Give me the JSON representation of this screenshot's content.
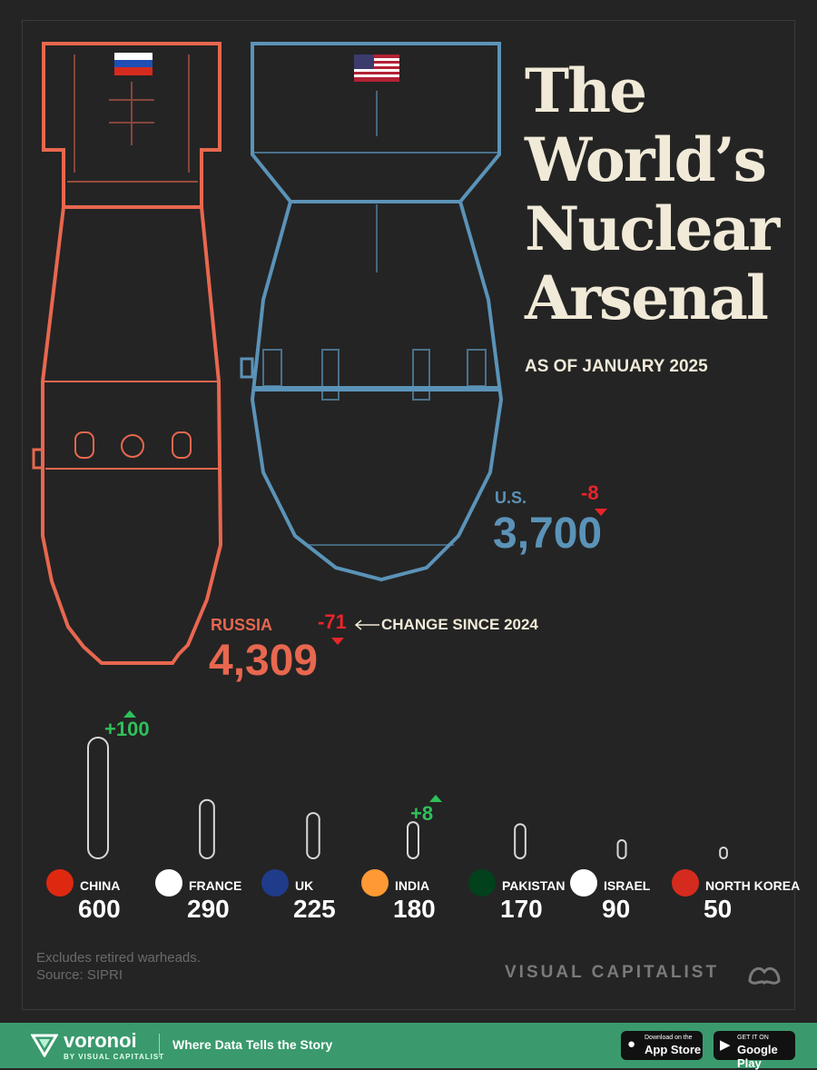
{
  "title_lines": [
    "The",
    "World’s",
    "Nuclear",
    "Arsenal"
  ],
  "subtitle": "AS OF JANUARY 2025",
  "annotation": "CHANGE SINCE 2024",
  "colors": {
    "background": "#242424",
    "russia": "#e8674f",
    "us": "#5b93b8",
    "increase": "#2ec15a",
    "decrease": "#e8252b",
    "text": "#f1ead8"
  },
  "chart_data": {
    "type": "bar",
    "title": "The World’s Nuclear Arsenal",
    "subtitle": "AS OF JANUARY 2025",
    "unit": "warheads",
    "categories": [
      "RUSSIA",
      "U.S.",
      "CHINA",
      "FRANCE",
      "UK",
      "INDIA",
      "PAKISTAN",
      "ISRAEL",
      "NORTH KOREA"
    ],
    "values": [
      4309,
      3700,
      600,
      290,
      225,
      180,
      170,
      90,
      50
    ],
    "value_labels": [
      "4,309",
      "3,700",
      "600",
      "290",
      "225",
      "180",
      "170",
      "90",
      "50"
    ],
    "change_since_2024": [
      {
        "country": "RUSSIA",
        "label": "-71",
        "value": -71
      },
      {
        "country": "U.S.",
        "label": "-8",
        "value": -8
      },
      {
        "country": "CHINA",
        "label": "+100",
        "value": 100
      },
      {
        "country": "INDIA",
        "label": "+8",
        "value": 8
      }
    ],
    "flags": [
      "russia-flag",
      "us-flag",
      "china-flag",
      "france-flag",
      "uk-flag",
      "india-flag",
      "pakistan-flag",
      "israel-flag",
      "north-korea-flag"
    ]
  },
  "footnote": [
    "Excludes retired warheads.",
    "Source: SIPRI"
  ],
  "brand": "VISUAL CAPITALIST",
  "footer": {
    "logo": "voronoi",
    "by": "BY VISUAL CAPITALIST",
    "tagline": "Where Data Tells the Story",
    "app_store_small": "Download on the",
    "app_store": "App Store",
    "google_small": "GET IT ON",
    "google": "Google Play"
  }
}
